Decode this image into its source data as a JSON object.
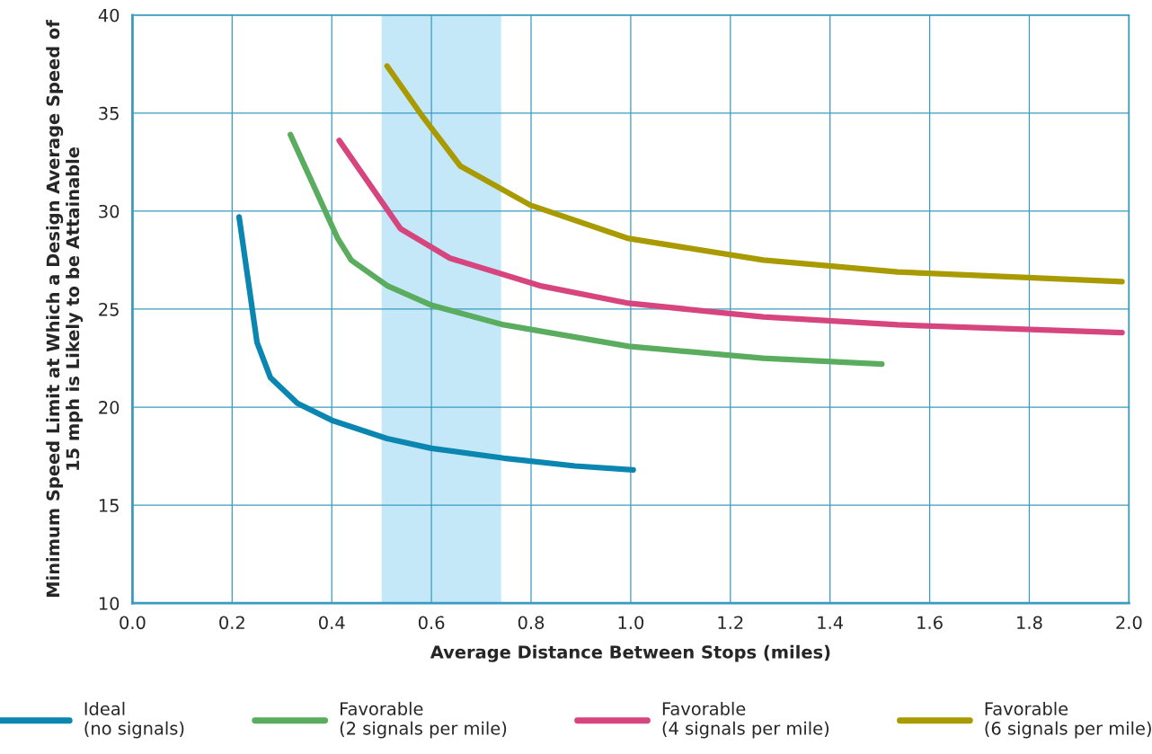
{
  "chart_data": {
    "type": "line",
    "xlabel": "Average Distance Between Stops (miles)",
    "ylabel": "Minimum Speed Limit at Which a Design Average Speed of\n15 mph is Likely to be Attainable",
    "xlim": [
      0,
      2
    ],
    "ylim": [
      10,
      40
    ],
    "xticks": [
      {
        "value": 0,
        "label": "0.0"
      },
      {
        "value": 0.2,
        "label": "0.2"
      },
      {
        "value": 0.4,
        "label": "0.4"
      },
      {
        "value": 0.6,
        "label": "0.6"
      },
      {
        "value": 0.8,
        "label": "0.8"
      },
      {
        "value": 1,
        "label": "1.0"
      },
      {
        "value": 1.2,
        "label": "1.2"
      },
      {
        "value": 1.4,
        "label": "1.4"
      },
      {
        "value": 1.6,
        "label": "1.6"
      },
      {
        "value": 1.8,
        "label": "1.8"
      },
      {
        "value": 2,
        "label": "2.0"
      }
    ],
    "yticks": [
      10,
      15,
      20,
      25,
      30,
      35,
      40
    ],
    "grid": true,
    "legend": "bottom",
    "line_style": "solid",
    "marker": "none",
    "bands": [
      {
        "axis": "x",
        "from": 0.5,
        "to": 0.74,
        "color": "#c5e8f8"
      }
    ],
    "series": [
      {
        "name": "Ideal\n(no signals)",
        "color": "#0a86b0",
        "x": [
          0.214,
          0.25,
          0.277,
          0.331,
          0.403,
          0.511,
          0.6,
          0.745,
          0.888,
          1.005
        ],
        "values": [
          29.7,
          23.3,
          21.5,
          20.2,
          19.3,
          18.4,
          17.9,
          17.4,
          17.0,
          16.8
        ]
      },
      {
        "name": "Favorable\n(2 signals per mile)",
        "color": "#5aad5e",
        "x": [
          0.317,
          0.412,
          0.439,
          0.511,
          0.6,
          0.745,
          0.996,
          1.266,
          1.504
        ],
        "values": [
          33.9,
          28.6,
          27.5,
          26.2,
          25.2,
          24.2,
          23.1,
          22.5,
          22.2
        ]
      },
      {
        "name": "Favorable\n(4 signals per mile)",
        "color": "#d6457e",
        "x": [
          0.415,
          0.538,
          0.637,
          0.817,
          0.996,
          1.266,
          1.536,
          1.986
        ],
        "values": [
          33.6,
          29.1,
          27.6,
          26.2,
          25.3,
          24.6,
          24.2,
          23.8
        ]
      },
      {
        "name": "Favorable\n(6 signals per mile)",
        "color": "#a99a00",
        "x": [
          0.511,
          0.583,
          0.658,
          0.799,
          0.996,
          1.266,
          1.536,
          1.986
        ],
        "values": [
          37.4,
          34.8,
          32.3,
          30.3,
          28.6,
          27.5,
          26.9,
          26.4
        ]
      }
    ]
  }
}
